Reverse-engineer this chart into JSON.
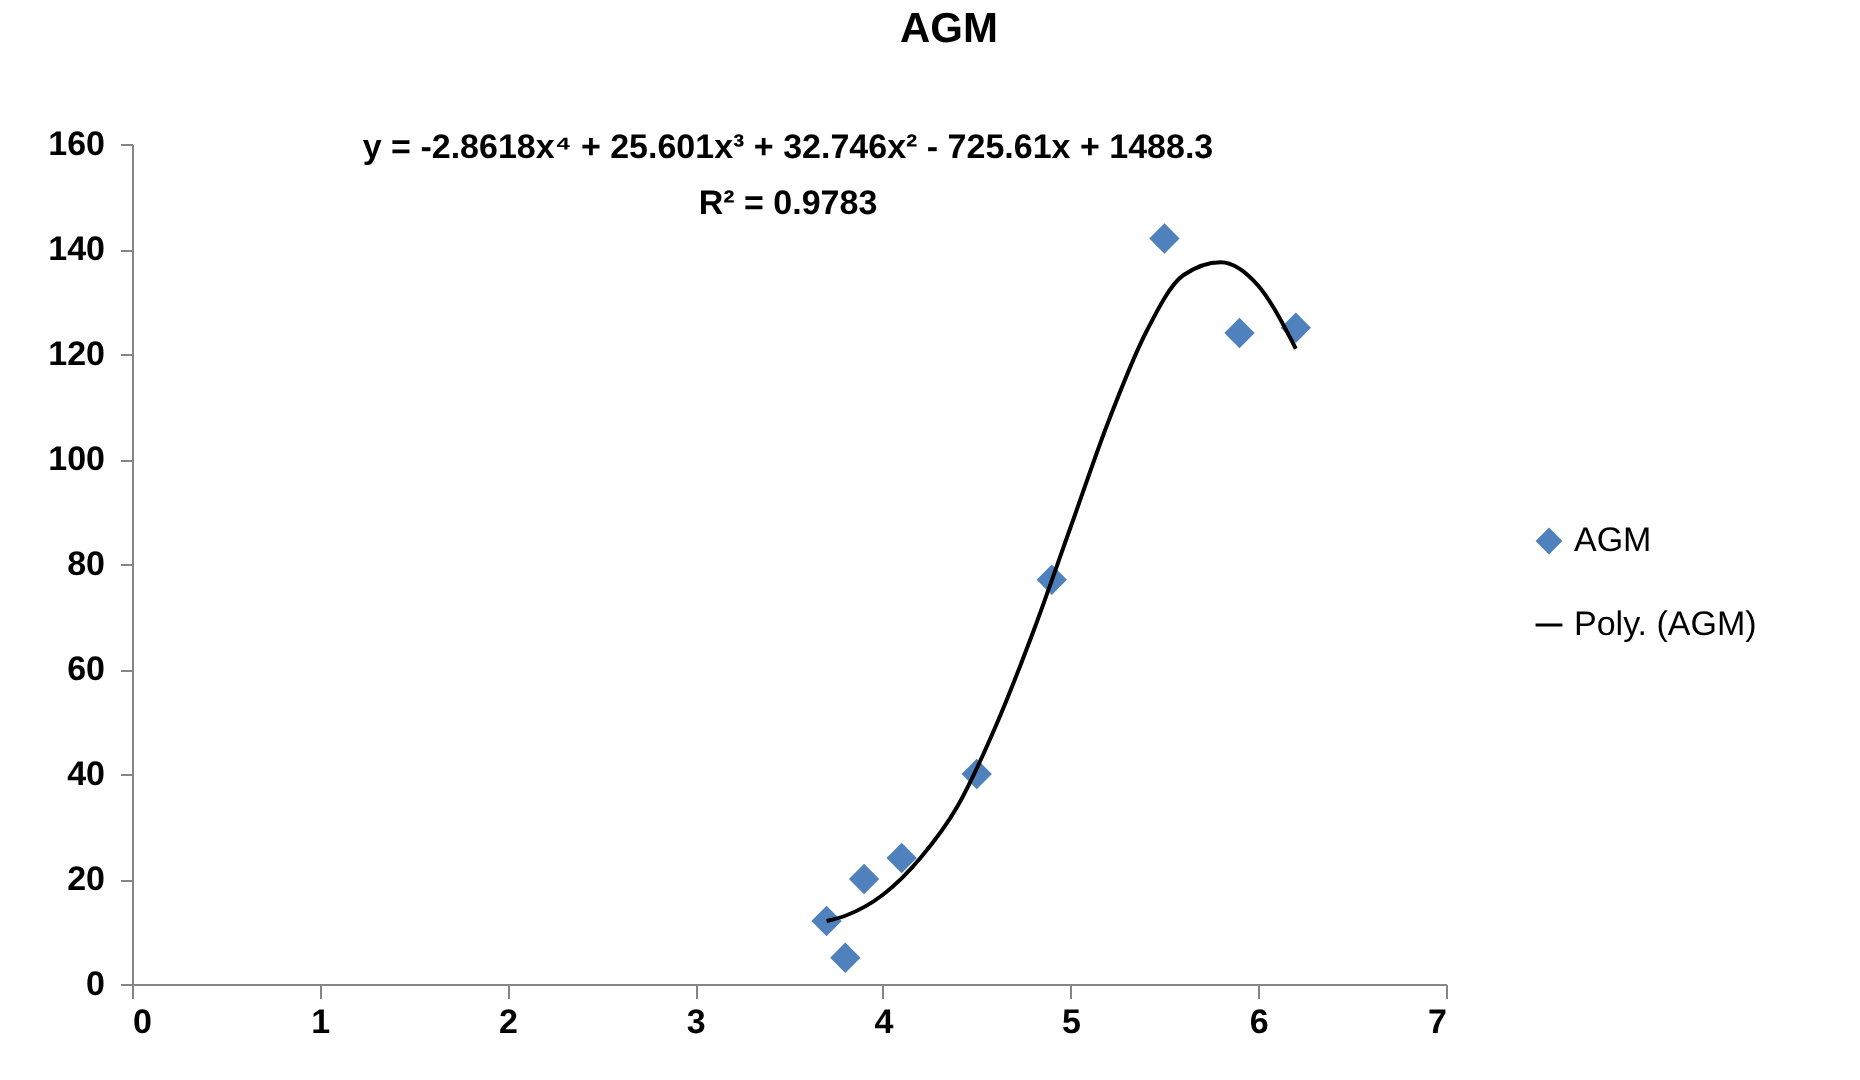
{
  "chart_data": {
    "type": "scatter",
    "title": "AGM",
    "annotations": [
      "y = -2.8618x⁴ + 25.601x³ + 32.746x² - 725.61x + 1488.3",
      "R² = 0.9783"
    ],
    "legend": "right",
    "grid": false,
    "xlim": [
      0,
      7
    ],
    "xticks": [
      0,
      1,
      2,
      3,
      4,
      5,
      6,
      7
    ],
    "ylim": [
      0,
      160
    ],
    "yticks": [
      0,
      20,
      40,
      60,
      80,
      100,
      120,
      140,
      160
    ],
    "series": [
      {
        "name": "AGM",
        "color": "#4f81bd",
        "marker": "diamond",
        "x": [
          3.7,
          3.8,
          3.9,
          4.1,
          4.5,
          4.9,
          5.5,
          5.9,
          6.2
        ],
        "values": [
          12,
          5,
          20,
          24,
          40,
          77,
          142,
          124,
          125
        ]
      },
      {
        "name": "Poly. (AGM)",
        "type": "line",
        "color": "#000000",
        "x": [
          3.7,
          3.8,
          4.0,
          4.2,
          4.4,
          4.6,
          4.8,
          5.0,
          5.2,
          5.4,
          5.6,
          5.8,
          6.0,
          6.2
        ],
        "values": [
          12,
          13,
          17,
          24,
          34,
          49,
          67,
          87,
          107,
          124,
          135,
          137.5,
          133,
          121
        ]
      }
    ]
  }
}
